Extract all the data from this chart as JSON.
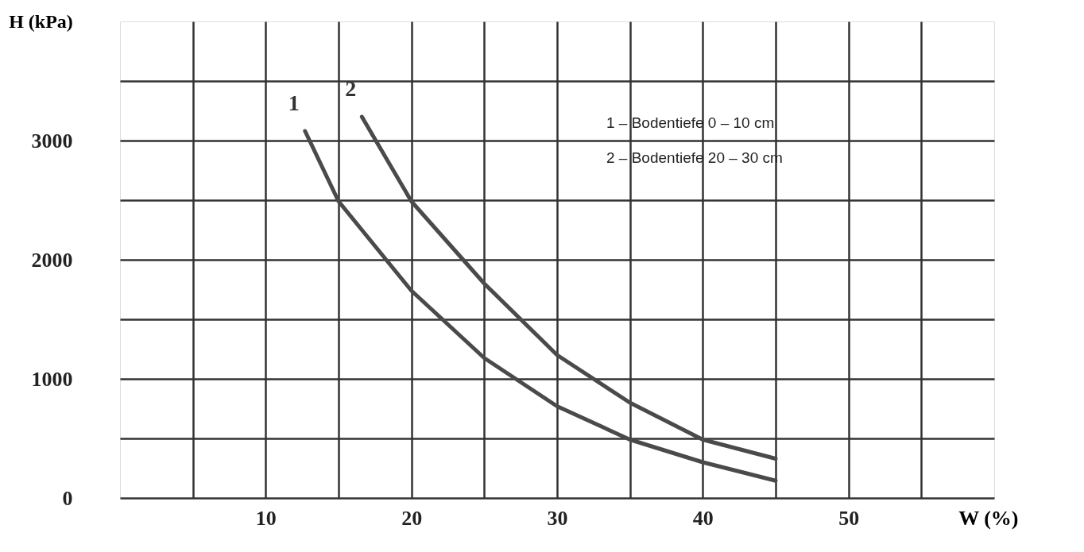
{
  "chart_data": {
    "type": "line",
    "xlabel": "W (%)",
    "ylabel": "H (kPa)",
    "xlim": [
      0,
      60
    ],
    "ylim": [
      0,
      4000
    ],
    "xticks": [
      {
        "value": 5,
        "label": null
      },
      10,
      {
        "value": 15,
        "label": null
      },
      20,
      {
        "value": 25,
        "label": null
      },
      30,
      {
        "value": 35,
        "label": null
      },
      40,
      {
        "value": 45,
        "label": null
      },
      50,
      {
        "value": 55,
        "label": null
      }
    ],
    "yticks": [
      0,
      {
        "value": 500,
        "label": null
      },
      1000,
      {
        "value": 1500,
        "label": null
      },
      2000,
      {
        "value": 2500,
        "label": null
      },
      3000,
      {
        "value": 3500,
        "label": null
      }
    ],
    "grid": true,
    "line_style": "solid",
    "series": [
      {
        "name": "1",
        "color": "#4a4a4a",
        "x": [
          12.7,
          15,
          20,
          25,
          30,
          35,
          40,
          45
        ],
        "values": [
          3080,
          2490,
          1740,
          1175,
          770,
          490,
          300,
          145
        ]
      },
      {
        "name": "2",
        "color": "#4a4a4a",
        "x": [
          16.6,
          20,
          25,
          30,
          35,
          40,
          45
        ],
        "values": [
          3200,
          2490,
          1800,
          1200,
          800,
          490,
          330
        ]
      }
    ],
    "annotations": [
      "1 – Bodentiefe   0 – 10 cm",
      "2 – Bodentiefe 20 – 30 cm"
    ]
  }
}
